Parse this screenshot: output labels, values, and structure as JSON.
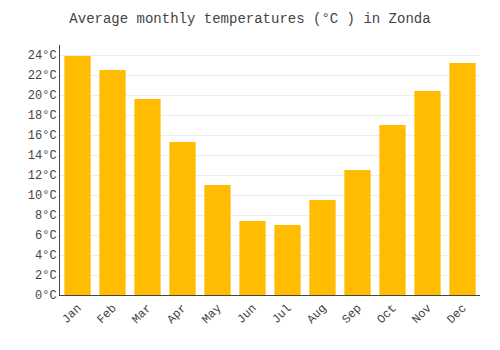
{
  "chart_data": {
    "type": "bar",
    "title": "Average monthly temperatures (°C ) in Zonda",
    "categories": [
      "Jan",
      "Feb",
      "Mar",
      "Apr",
      "May",
      "Jun",
      "Jul",
      "Aug",
      "Sep",
      "Oct",
      "Nov",
      "Dec"
    ],
    "values": [
      23.9,
      22.5,
      19.6,
      15.3,
      11.0,
      7.4,
      7.0,
      9.5,
      12.5,
      17.0,
      20.4,
      23.2
    ],
    "color": "#FFBC00",
    "ylim": [
      0,
      25
    ],
    "yticks": [
      {
        "value": 0,
        "label": "0°C"
      },
      {
        "value": 2,
        "label": "2°C"
      },
      {
        "value": 4,
        "label": "4°C"
      },
      {
        "value": 6,
        "label": "6°C"
      },
      {
        "value": 8,
        "label": "8°C"
      },
      {
        "value": 10,
        "label": "10°C"
      },
      {
        "value": 12,
        "label": "12°C"
      },
      {
        "value": 14,
        "label": "14°C"
      },
      {
        "value": 16,
        "label": "16°C"
      },
      {
        "value": 18,
        "label": "18°C"
      },
      {
        "value": 20,
        "label": "20°C"
      },
      {
        "value": 22,
        "label": "22°C"
      },
      {
        "value": 24,
        "label": "24°C"
      }
    ],
    "grid": true
  }
}
